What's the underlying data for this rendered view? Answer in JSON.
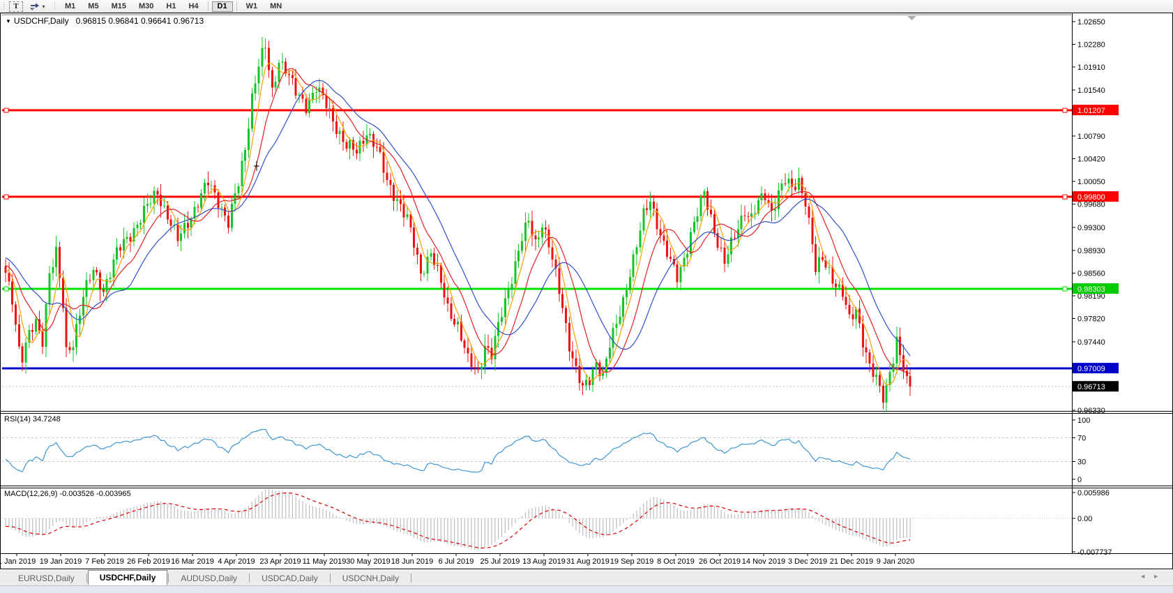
{
  "toolbar": {
    "text_tool_label": "T",
    "cycle_caret": "▾",
    "timeframes": [
      "M1",
      "M5",
      "M15",
      "M30",
      "H1",
      "H4",
      "D1",
      "W1",
      "MN"
    ],
    "active_timeframe": "D1"
  },
  "chart": {
    "title_marker": "▼",
    "symbol_title": "USDCHF,Daily",
    "ohlc_text": "0.96815 0.96841 0.96641 0.96713"
  },
  "chart_data": {
    "type": "candlestick",
    "symbol": "USDCHF",
    "timeframe": "Daily",
    "ohlc_display": {
      "open": "0.96815",
      "high": "0.96841",
      "low": "0.96641",
      "close": "0.96713"
    },
    "bars_count": 269,
    "prehistory": {
      "bars": 60,
      "start_price": 1.002
    },
    "close_waypoints": [
      [
        0,
        0.9852
      ],
      [
        2,
        0.9815
      ],
      [
        4,
        0.9736
      ],
      [
        5,
        0.9722
      ],
      [
        7,
        0.9755
      ],
      [
        9,
        0.9772
      ],
      [
        11,
        0.9748
      ],
      [
        13,
        0.986
      ],
      [
        15,
        0.9888
      ],
      [
        17,
        0.98
      ],
      [
        18,
        0.9725
      ],
      [
        20,
        0.9745
      ],
      [
        23,
        0.982
      ],
      [
        26,
        0.9858
      ],
      [
        29,
        0.983
      ],
      [
        33,
        0.9888
      ],
      [
        37,
        0.992
      ],
      [
        41,
        0.9955
      ],
      [
        45,
        0.9988
      ],
      [
        48,
        0.995
      ],
      [
        51,
        0.9908
      ],
      [
        54,
        0.994
      ],
      [
        57,
        0.9972
      ],
      [
        60,
        1.0002
      ],
      [
        63,
        0.9975
      ],
      [
        66,
        0.9938
      ],
      [
        69,
        1.0
      ],
      [
        71,
        1.006
      ],
      [
        73,
        1.0145
      ],
      [
        75,
        1.0195
      ],
      [
        77,
        1.0222
      ],
      [
        79,
        1.015
      ],
      [
        81,
        1.0205
      ],
      [
        83,
        1.0188
      ],
      [
        86,
        1.0148
      ],
      [
        89,
        1.013
      ],
      [
        92,
        1.0158
      ],
      [
        95,
        1.0128
      ],
      [
        98,
        1.0095
      ],
      [
        101,
        1.0062
      ],
      [
        104,
        1.0052
      ],
      [
        107,
        1.0088
      ],
      [
        110,
        1.0058
      ],
      [
        113,
        1.0005
      ],
      [
        116,
        0.9978
      ],
      [
        119,
        0.9942
      ],
      [
        121,
        0.9902
      ],
      [
        123,
        0.9858
      ],
      [
        126,
        0.989
      ],
      [
        129,
        0.9838
      ],
      [
        131,
        0.98
      ],
      [
        134,
        0.9772
      ],
      [
        137,
        0.9712
      ],
      [
        140,
        0.9695
      ],
      [
        142,
        0.974
      ],
      [
        144,
        0.9722
      ],
      [
        147,
        0.979
      ],
      [
        150,
        0.9852
      ],
      [
        153,
        0.9912
      ],
      [
        155,
        0.9938
      ],
      [
        157,
        0.9905
      ],
      [
        159,
        0.994
      ],
      [
        161,
        0.9902
      ],
      [
        163,
        0.985
      ],
      [
        165,
        0.98
      ],
      [
        167,
        0.9742
      ],
      [
        169,
        0.97
      ],
      [
        171,
        0.9665
      ],
      [
        173,
        0.968
      ],
      [
        175,
        0.9712
      ],
      [
        177,
        0.9692
      ],
      [
        179,
        0.9738
      ],
      [
        181,
        0.977
      ],
      [
        183,
        0.9812
      ],
      [
        185,
        0.986
      ],
      [
        187,
        0.99
      ],
      [
        189,
        0.9948
      ],
      [
        191,
        0.9975
      ],
      [
        193,
        0.994
      ],
      [
        195,
        0.9902
      ],
      [
        197,
        0.9872
      ],
      [
        199,
        0.9848
      ],
      [
        201,
        0.9882
      ],
      [
        203,
        0.992
      ],
      [
        205,
        0.9952
      ],
      [
        207,
        0.9985
      ],
      [
        209,
        0.9948
      ],
      [
        211,
        0.9908
      ],
      [
        213,
        0.9872
      ],
      [
        215,
        0.99
      ],
      [
        217,
        0.9932
      ],
      [
        219,
        0.996
      ],
      [
        221,
        0.9945
      ],
      [
        223,
        0.9968
      ],
      [
        225,
        0.9982
      ],
      [
        227,
        0.9958
      ],
      [
        229,
        0.9988
      ],
      [
        231,
        1.0005
      ],
      [
        233,
        0.9992
      ],
      [
        235,
        1.0008
      ],
      [
        237,
        0.9975
      ],
      [
        239,
        0.9902
      ],
      [
        240,
        0.9858
      ],
      [
        242,
        0.988
      ],
      [
        244,
        0.9862
      ],
      [
        246,
        0.9838
      ],
      [
        248,
        0.982
      ],
      [
        250,
        0.9778
      ],
      [
        252,
        0.98
      ],
      [
        254,
        0.9748
      ],
      [
        256,
        0.9702
      ],
      [
        258,
        0.968
      ],
      [
        260,
        0.9655
      ],
      [
        261,
        0.9672
      ],
      [
        262,
        0.97
      ],
      [
        263,
        0.972
      ],
      [
        264,
        0.9745
      ],
      [
        265,
        0.972
      ],
      [
        266,
        0.9698
      ],
      [
        267,
        0.9682
      ],
      [
        268,
        0.96713
      ]
    ],
    "candle_colors": {
      "up": "#17C427",
      "down": "#ED1111"
    },
    "moving_averages": [
      {
        "period": 5,
        "color": "#FF9E00"
      },
      {
        "period": 11,
        "color": "#E02222"
      },
      {
        "period": 20,
        "color": "#3050C8"
      }
    ],
    "price_axis_ticks": [
      "1.02650",
      "1.02280",
      "1.01910",
      "1.01540",
      "1.00790",
      "1.00420",
      "1.00050",
      "0.99680",
      "0.99300",
      "0.98930",
      "0.98560",
      "0.98190",
      "0.97820",
      "0.97440",
      "0.96330"
    ],
    "levels": [
      {
        "price": 1.01207,
        "label": "1.01207",
        "color": "#FF0000",
        "label_bg": "#FF0000",
        "handles": true
      },
      {
        "price": 0.998,
        "label": "0.99800",
        "color": "#FF0000",
        "label_bg": "#FF0000",
        "handles": true
      },
      {
        "price": 0.98303,
        "label": "0.98303",
        "color": "#00E400",
        "label_bg": "#00CC00",
        "handles": true
      },
      {
        "price": 0.97009,
        "label": "0.97009",
        "color": "#0000D0",
        "label_bg": "#0000C8",
        "handles": false
      }
    ],
    "bid": {
      "price": 0.96713,
      "label": "0.96713",
      "label_bg": "#000000"
    },
    "x_labels": [
      "1 Jan 2019",
      "19 Jan 2019",
      "7 Feb 2019",
      "26 Feb 2019",
      "16 Mar 2019",
      "4 Apr 2019",
      "23 Apr 2019",
      "11 May 2019",
      "30 May 2019",
      "18 Jun 2019",
      "6 Jul 2019",
      "25 Jul 2019",
      "13 Aug 2019",
      "31 Aug 2019",
      "19 Sep 2019",
      "8 Oct 2019",
      "26 Oct 2019",
      "14 Nov 2019",
      "3 Dec 2019",
      "21 Dec 2019",
      "9 Jan 2020"
    ],
    "rsi": {
      "label": "RSI(14) 34.7248",
      "period": 14,
      "color": "#3E96D2",
      "dashed_levels": [
        70,
        30
      ],
      "axis_ticks": [
        "100",
        "70",
        "30",
        "0"
      ]
    },
    "macd": {
      "label": "MACD(12,26,9) -0.003526 -0.003965",
      "fast": 12,
      "slow": 26,
      "signal": 9,
      "hist_color": "#BDBDBD",
      "signal_color": "#DD0000",
      "axis_ticks": [
        "0.005986",
        "0.00",
        "-0.007737"
      ]
    }
  },
  "tabs": [
    {
      "label": "EURUSD,Daily",
      "active": false
    },
    {
      "label": "USDCHF,Daily",
      "active": true
    },
    {
      "label": "AUDUSD,Daily",
      "active": false
    },
    {
      "label": "USDCAD,Daily",
      "active": false
    },
    {
      "label": "USDCNH,Daily",
      "active": false
    }
  ],
  "tab_arrows": {
    "left": "◄",
    "right": "►"
  }
}
